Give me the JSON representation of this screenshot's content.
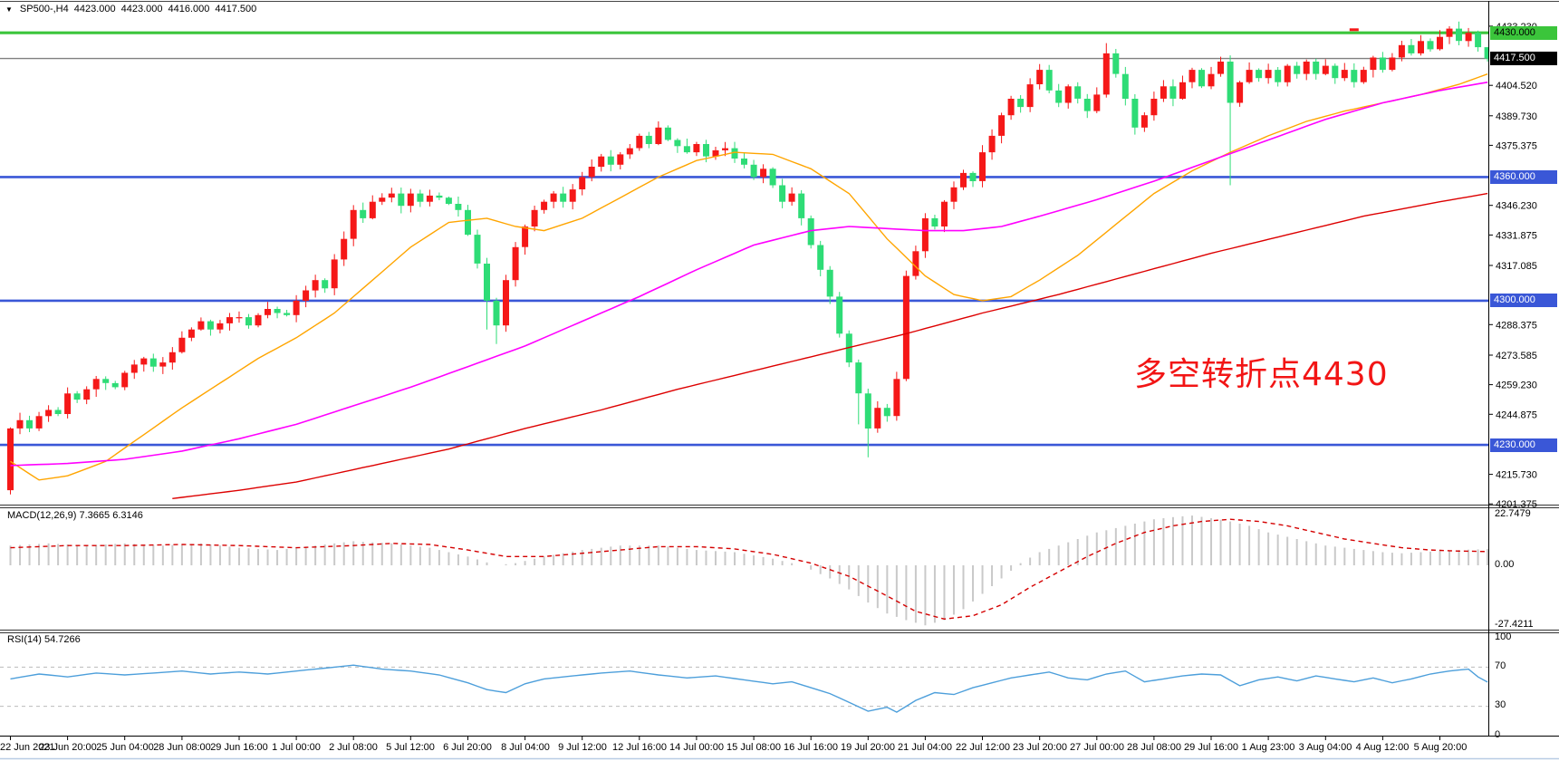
{
  "header": {
    "symbol_period": "SP500-,H4",
    "open": "4423.000",
    "high": "4423.000",
    "low": "4416.000",
    "close": "4417.500",
    "dropdown_icon": "▼"
  },
  "annotation": {
    "text": "多空转折点4430",
    "color": "#F21515"
  },
  "indicators": {
    "macd": {
      "label": "MACD(12,26,9)",
      "value_main": "7.3665",
      "value_signal": "6.3146",
      "scale": [
        "22.7479",
        "0.00",
        "-27.4211"
      ]
    },
    "rsi": {
      "label": "RSI(14)",
      "value": "54.7266",
      "scale": [
        "100",
        "70",
        "30",
        "0"
      ],
      "levels": [
        70,
        30
      ]
    }
  },
  "y_axis": {
    "ticks": [
      "4433.230",
      "4404.520",
      "4389.730",
      "4375.375",
      "4346.230",
      "4331.875",
      "4317.085",
      "4288.375",
      "4273.585",
      "4259.230",
      "4244.875",
      "4215.730",
      "4201.375"
    ],
    "boxed": [
      {
        "text": "4430.000",
        "price": 4430.0,
        "type": "green"
      },
      {
        "text": "4417.500",
        "price": 4417.5,
        "type": "current"
      },
      {
        "text": "4360.000",
        "price": 4360.0,
        "type": "blue"
      },
      {
        "text": "4300.000",
        "price": 4300.0,
        "type": "blue"
      },
      {
        "text": "4230.000",
        "price": 4230.0,
        "type": "blue"
      }
    ]
  },
  "x_axis": {
    "labels": [
      "22 Jun 2021",
      "23 Jun 20:00",
      "25 Jun 04:00",
      "28 Jun 08:00",
      "29 Jun 16:00",
      "1 Jul 00:00",
      "2 Jul 08:00",
      "5 Jul 12:00",
      "6 Jul 20:00",
      "8 Jul 04:00",
      "9 Jul 12:00",
      "12 Jul 16:00",
      "14 Jul 00:00",
      "15 Jul 08:00",
      "16 Jul 16:00",
      "19 Jul 20:00",
      "21 Jul 04:00",
      "22 Jul 12:00",
      "23 Jul 20:00",
      "27 Jul 00:00",
      "28 Jul 08:00",
      "29 Jul 16:00",
      "1 Aug 23:00",
      "3 Aug 04:00",
      "4 Aug 12:00",
      "5 Aug 20:00"
    ]
  },
  "chart_data": {
    "type": "candlestick",
    "symbol": "SP500-",
    "period": "H4",
    "title": "SP500-,H4 4423.000 4423.000 4416.000 4417.500",
    "price_range": {
      "min": 4200.6,
      "max": 4438.0
    },
    "bars_per_label": 6,
    "colors": {
      "bull": "#F51818",
      "bear": "#2EDC76",
      "ma_fast": "#FFA500",
      "ma_mid": "#FF00FF",
      "ma_slow": "#DD0000",
      "hline_green": "#3BC53B",
      "hline_blue": "#3A57D7",
      "current_line": "#808080",
      "macd_hist": "#C9C9C9",
      "macd_signal": "#D40000",
      "rsi_line": "#4D9FDB",
      "rsi_level": "#BBBBBB",
      "axis_text": "#000000"
    },
    "hlines": [
      {
        "price": 4430.0,
        "color": "#3BC53B",
        "width": 3.2,
        "name": "resistance-4430"
      },
      {
        "price": 4417.5,
        "color": "#808080",
        "width": 1.4,
        "name": "current-price-line"
      },
      {
        "price": 4360.0,
        "color": "#3A57D7",
        "width": 2.6,
        "name": "support-4360"
      },
      {
        "price": 4300.0,
        "color": "#3A57D7",
        "width": 2.6,
        "name": "support-4300"
      },
      {
        "price": 4230.0,
        "color": "#3A57D7",
        "width": 2.6,
        "name": "support-4230"
      }
    ],
    "open_first": 4208,
    "closes": [
      4238,
      4242,
      4238,
      4244,
      4247,
      4245,
      4255,
      4252,
      4257,
      4262,
      4260,
      4258,
      4265,
      4269,
      4272,
      4268,
      4270,
      4275,
      4282,
      4286,
      4290,
      4286,
      4289,
      4292,
      4292,
      4288,
      4293,
      4296,
      4294,
      4293,
      4300,
      4305,
      4310,
      4306,
      4320,
      4330,
      4344,
      4340,
      4348,
      4350,
      4352,
      4346,
      4352,
      4348,
      4351,
      4350,
      4347,
      4344,
      4332,
      4318,
      4300,
      4288,
      4310,
      4326,
      4336,
      4344,
      4348,
      4352,
      4348,
      4354,
      4360,
      4365,
      4370,
      4366,
      4371,
      4374,
      4380,
      4376,
      4384,
      4378,
      4375,
      4372,
      4376,
      4370,
      4373,
      4374,
      4369,
      4366,
      4360,
      4364,
      4356,
      4348,
      4352,
      4340,
      4327,
      4315,
      4302,
      4284,
      4270,
      4255,
      4238,
      4248,
      4244,
      4262,
      4312,
      4324,
      4340,
      4336,
      4348,
      4355,
      4362,
      4358,
      4372,
      4380,
      4390,
      4398,
      4394,
      4405,
      4412,
      4402,
      4396,
      4404,
      4398,
      4392,
      4400,
      4420,
      4410,
      4398,
      4384,
      4390,
      4398,
      4404,
      4398,
      4406,
      4412,
      4404,
      4410,
      4416,
      4396,
      4406,
      4412,
      4408,
      4412,
      4406,
      4414,
      4410,
      4416,
      4410,
      4414,
      4408,
      4412,
      4406,
      4412,
      4418,
      4412,
      4418,
      4424,
      4420,
      4426,
      4422,
      4428,
      4432,
      4426,
      4430,
      4423,
      4417.5
    ],
    "wick_overrides": {
      "0": {
        "low": 4206
      },
      "50": {
        "low": 4286
      },
      "51": {
        "low": 4279
      },
      "68": {
        "high": 4387
      },
      "89": {
        "low": 4240
      },
      "90": {
        "low": 4224
      },
      "115": {
        "high": 4425
      },
      "128": {
        "low": 4356
      },
      "151": {
        "high": 4433.2
      },
      "155": {
        "high": 4423,
        "low": 4416
      }
    },
    "ma": {
      "fast": {
        "color": "#FFA500",
        "points": [
          [
            0,
            4222
          ],
          [
            3,
            4213
          ],
          [
            6,
            4215
          ],
          [
            10,
            4222
          ],
          [
            14,
            4235
          ],
          [
            18,
            4248
          ],
          [
            22,
            4260
          ],
          [
            26,
            4272
          ],
          [
            30,
            4282
          ],
          [
            34,
            4294
          ],
          [
            38,
            4310
          ],
          [
            42,
            4326
          ],
          [
            46,
            4338
          ],
          [
            50,
            4340
          ],
          [
            53,
            4336
          ],
          [
            56,
            4334
          ],
          [
            60,
            4340
          ],
          [
            64,
            4350
          ],
          [
            68,
            4360
          ],
          [
            72,
            4368
          ],
          [
            76,
            4372
          ],
          [
            80,
            4371
          ],
          [
            84,
            4364
          ],
          [
            88,
            4352
          ],
          [
            92,
            4330
          ],
          [
            96,
            4312
          ],
          [
            99,
            4303
          ],
          [
            102,
            4300
          ],
          [
            105,
            4302
          ],
          [
            108,
            4310
          ],
          [
            112,
            4322
          ],
          [
            116,
            4337
          ],
          [
            120,
            4352
          ],
          [
            124,
            4363
          ],
          [
            128,
            4372
          ],
          [
            132,
            4380
          ],
          [
            136,
            4387
          ],
          [
            140,
            4392
          ],
          [
            144,
            4396
          ],
          [
            148,
            4400
          ],
          [
            152,
            4405
          ],
          [
            155,
            4410
          ]
        ]
      },
      "mid": {
        "color": "#FF00FF",
        "points": [
          [
            0,
            4220
          ],
          [
            6,
            4221
          ],
          [
            12,
            4223
          ],
          [
            18,
            4227
          ],
          [
            24,
            4233
          ],
          [
            30,
            4240
          ],
          [
            36,
            4249
          ],
          [
            42,
            4258
          ],
          [
            48,
            4268
          ],
          [
            54,
            4278
          ],
          [
            60,
            4290
          ],
          [
            66,
            4302
          ],
          [
            72,
            4315
          ],
          [
            78,
            4327
          ],
          [
            84,
            4334
          ],
          [
            88,
            4336
          ],
          [
            92,
            4335
          ],
          [
            96,
            4334
          ],
          [
            100,
            4334
          ],
          [
            104,
            4336
          ],
          [
            108,
            4341
          ],
          [
            114,
            4349
          ],
          [
            120,
            4358
          ],
          [
            126,
            4368
          ],
          [
            132,
            4378
          ],
          [
            138,
            4388
          ],
          [
            144,
            4396
          ],
          [
            150,
            4402
          ],
          [
            155,
            4406
          ]
        ]
      },
      "slow": {
        "color": "#DD0000",
        "points": [
          [
            17,
            4204
          ],
          [
            24,
            4208
          ],
          [
            30,
            4212
          ],
          [
            38,
            4220
          ],
          [
            46,
            4228
          ],
          [
            54,
            4238
          ],
          [
            62,
            4247
          ],
          [
            70,
            4257
          ],
          [
            78,
            4266
          ],
          [
            86,
            4275
          ],
          [
            94,
            4284
          ],
          [
            102,
            4294
          ],
          [
            110,
            4303
          ],
          [
            118,
            4313
          ],
          [
            126,
            4323
          ],
          [
            134,
            4332
          ],
          [
            142,
            4341
          ],
          [
            150,
            4348
          ],
          [
            155,
            4352
          ]
        ]
      }
    },
    "macd": {
      "range": {
        "max": 22.7479,
        "min": -27.4211
      },
      "hist_anchors": [
        [
          0,
          9
        ],
        [
          4,
          10
        ],
        [
          8,
          9
        ],
        [
          12,
          10
        ],
        [
          16,
          9
        ],
        [
          20,
          10
        ],
        [
          24,
          8
        ],
        [
          28,
          7
        ],
        [
          32,
          9
        ],
        [
          36,
          11
        ],
        [
          40,
          10
        ],
        [
          44,
          8
        ],
        [
          48,
          4
        ],
        [
          51,
          0
        ],
        [
          53,
          1
        ],
        [
          56,
          4
        ],
        [
          60,
          7
        ],
        [
          64,
          9
        ],
        [
          68,
          9
        ],
        [
          72,
          7
        ],
        [
          76,
          6
        ],
        [
          80,
          3
        ],
        [
          83,
          0
        ],
        [
          86,
          -6
        ],
        [
          88,
          -11
        ],
        [
          90,
          -17
        ],
        [
          92,
          -22
        ],
        [
          94,
          -25
        ],
        [
          96,
          -27.4
        ],
        [
          98,
          -25
        ],
        [
          100,
          -20
        ],
        [
          102,
          -13
        ],
        [
          104,
          -6
        ],
        [
          106,
          1
        ],
        [
          108,
          6
        ],
        [
          110,
          9
        ],
        [
          112,
          12
        ],
        [
          114,
          15
        ],
        [
          116,
          17
        ],
        [
          118,
          19
        ],
        [
          120,
          21
        ],
        [
          122,
          22
        ],
        [
          124,
          22.7
        ],
        [
          126,
          21.5
        ],
        [
          128,
          20
        ],
        [
          130,
          18
        ],
        [
          132,
          15
        ],
        [
          134,
          13
        ],
        [
          136,
          11
        ],
        [
          138,
          9
        ],
        [
          140,
          8
        ],
        [
          142,
          7
        ],
        [
          144,
          6
        ],
        [
          146,
          5.5
        ],
        [
          148,
          6
        ],
        [
          150,
          6.5
        ],
        [
          152,
          7
        ],
        [
          155,
          7.4
        ]
      ],
      "signal_anchors": [
        [
          0,
          8
        ],
        [
          6,
          9
        ],
        [
          12,
          9
        ],
        [
          18,
          9.5
        ],
        [
          24,
          9
        ],
        [
          30,
          8
        ],
        [
          36,
          9
        ],
        [
          40,
          10
        ],
        [
          44,
          9.5
        ],
        [
          48,
          7
        ],
        [
          52,
          4
        ],
        [
          56,
          4
        ],
        [
          60,
          5.5
        ],
        [
          64,
          7
        ],
        [
          68,
          8.5
        ],
        [
          72,
          8.5
        ],
        [
          76,
          7.5
        ],
        [
          80,
          5
        ],
        [
          84,
          1
        ],
        [
          88,
          -5
        ],
        [
          92,
          -14
        ],
        [
          95,
          -21
        ],
        [
          98,
          -24.5
        ],
        [
          101,
          -23
        ],
        [
          104,
          -18
        ],
        [
          107,
          -10
        ],
        [
          110,
          -3
        ],
        [
          113,
          4
        ],
        [
          116,
          10
        ],
        [
          119,
          15
        ],
        [
          122,
          18
        ],
        [
          125,
          20
        ],
        [
          128,
          21
        ],
        [
          131,
          20
        ],
        [
          134,
          18
        ],
        [
          137,
          15
        ],
        [
          140,
          12
        ],
        [
          143,
          10
        ],
        [
          146,
          8
        ],
        [
          149,
          7
        ],
        [
          152,
          6.5
        ],
        [
          155,
          6.3
        ]
      ]
    },
    "rsi": {
      "range": [
        0,
        100
      ],
      "anchors": [
        [
          0,
          58
        ],
        [
          3,
          63
        ],
        [
          6,
          60
        ],
        [
          9,
          64
        ],
        [
          12,
          62
        ],
        [
          15,
          64
        ],
        [
          18,
          66
        ],
        [
          21,
          63
        ],
        [
          24,
          65
        ],
        [
          27,
          63
        ],
        [
          30,
          66
        ],
        [
          33,
          69
        ],
        [
          36,
          72
        ],
        [
          39,
          68
        ],
        [
          42,
          66
        ],
        [
          45,
          62
        ],
        [
          48,
          54
        ],
        [
          50,
          47
        ],
        [
          52,
          44
        ],
        [
          54,
          53
        ],
        [
          56,
          58
        ],
        [
          59,
          61
        ],
        [
          62,
          64
        ],
        [
          65,
          66
        ],
        [
          68,
          62
        ],
        [
          71,
          59
        ],
        [
          74,
          61
        ],
        [
          77,
          57
        ],
        [
          80,
          53
        ],
        [
          82,
          55
        ],
        [
          84,
          49
        ],
        [
          86,
          43
        ],
        [
          88,
          34
        ],
        [
          90,
          25
        ],
        [
          92,
          29
        ],
        [
          93,
          24
        ],
        [
          95,
          36
        ],
        [
          97,
          44
        ],
        [
          99,
          42
        ],
        [
          101,
          49
        ],
        [
          103,
          54
        ],
        [
          105,
          59
        ],
        [
          107,
          62
        ],
        [
          109,
          65
        ],
        [
          111,
          59
        ],
        [
          113,
          57
        ],
        [
          115,
          63
        ],
        [
          117,
          66
        ],
        [
          119,
          55
        ],
        [
          121,
          58
        ],
        [
          123,
          61
        ],
        [
          125,
          63
        ],
        [
          127,
          62
        ],
        [
          129,
          51
        ],
        [
          131,
          57
        ],
        [
          133,
          60
        ],
        [
          135,
          56
        ],
        [
          137,
          61
        ],
        [
          139,
          58
        ],
        [
          141,
          55
        ],
        [
          143,
          59
        ],
        [
          145,
          54
        ],
        [
          147,
          58
        ],
        [
          149,
          63
        ],
        [
          151,
          66
        ],
        [
          153,
          68
        ],
        [
          154,
          60
        ],
        [
          155,
          54.7
        ]
      ]
    },
    "object_marker": {
      "price": 4431.5,
      "bar": 141,
      "color": "#F51818"
    }
  }
}
